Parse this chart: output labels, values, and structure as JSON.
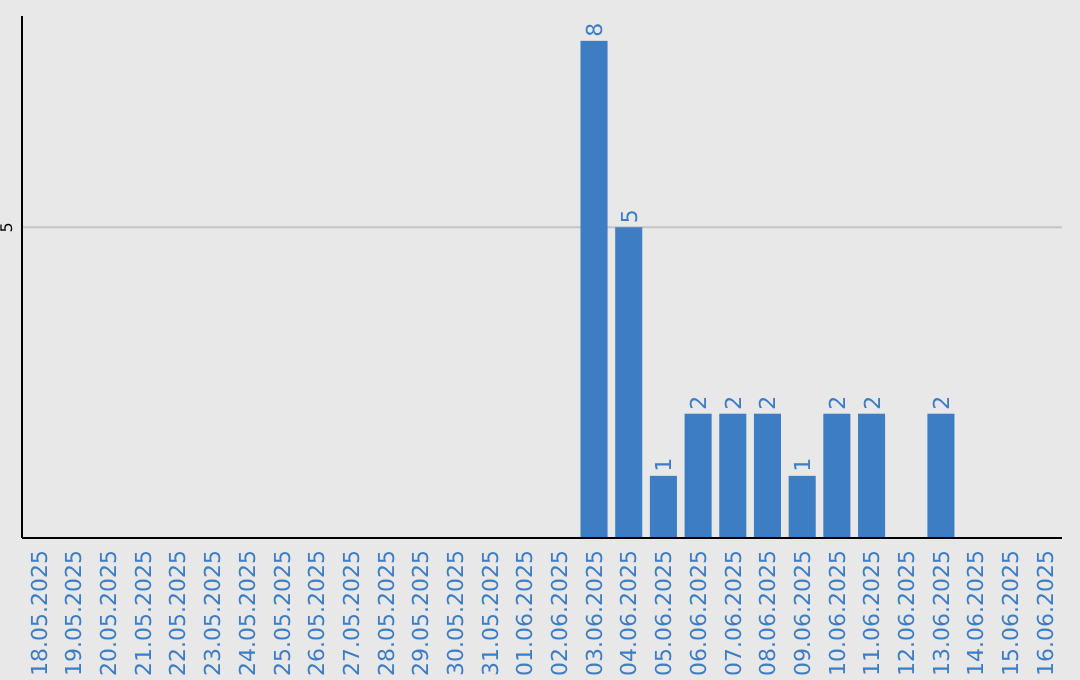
{
  "chart_data": {
    "type": "bar",
    "categories": [
      "18.05.2025",
      "19.05.2025",
      "20.05.2025",
      "21.05.2025",
      "22.05.2025",
      "23.05.2025",
      "24.05.2025",
      "25.05.2025",
      "26.05.2025",
      "27.05.2025",
      "28.05.2025",
      "29.05.2025",
      "30.05.2025",
      "31.05.2025",
      "01.06.2025",
      "02.06.2025",
      "03.06.2025",
      "04.06.2025",
      "05.06.2025",
      "06.06.2025",
      "07.06.2025",
      "08.06.2025",
      "09.06.2025",
      "10.06.2025",
      "11.06.2025",
      "12.06.2025",
      "13.06.2025",
      "14.06.2025",
      "15.06.2025",
      "16.06.2025"
    ],
    "values": [
      null,
      null,
      null,
      null,
      null,
      null,
      null,
      null,
      null,
      null,
      null,
      null,
      null,
      null,
      null,
      null,
      8,
      5,
      1,
      2,
      2,
      2,
      1,
      2,
      2,
      null,
      2,
      null,
      null,
      null
    ],
    "color": "#3d7dc3",
    "ylim": [
      0,
      8.4
    ],
    "yticks": [
      5
    ],
    "grid": "y",
    "data_labels": true
  }
}
